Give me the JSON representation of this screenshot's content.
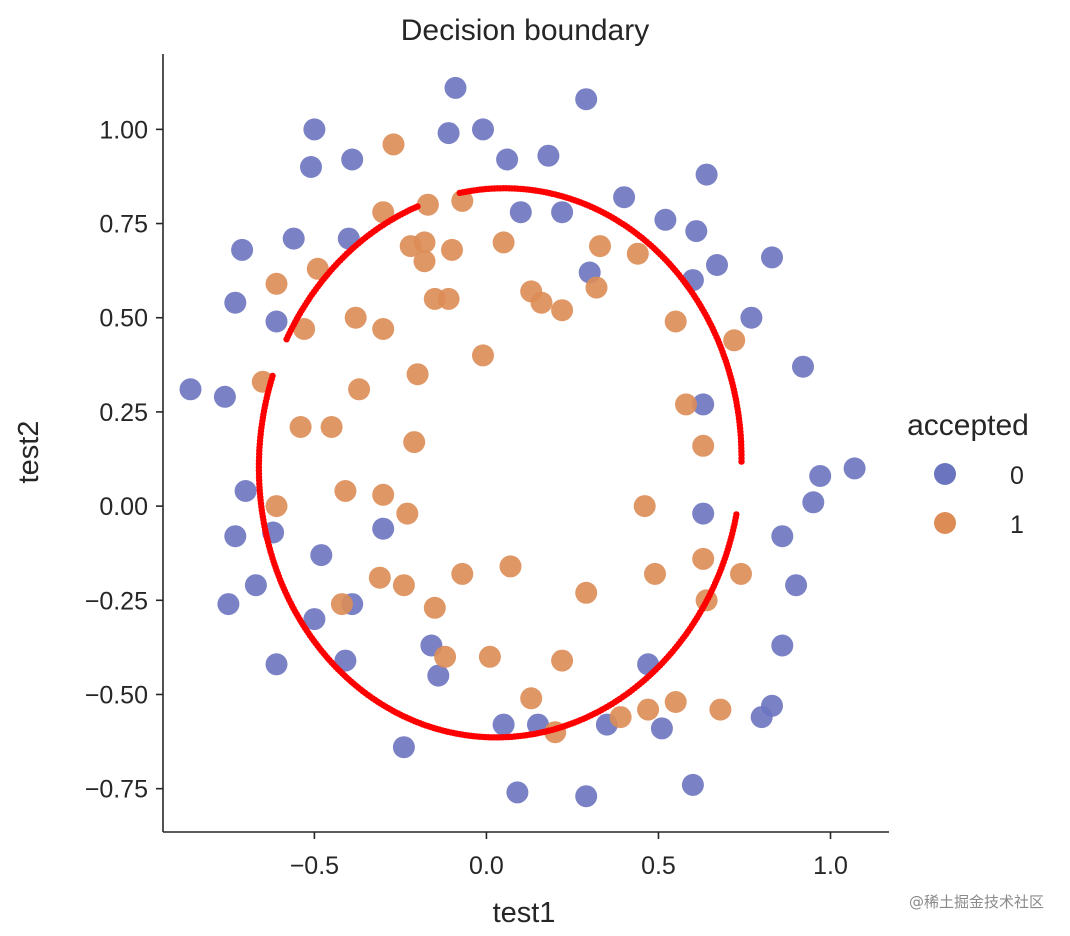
{
  "chart_data": {
    "type": "scatter",
    "title": "Decision boundary",
    "xlabel": "test1",
    "ylabel": "test2",
    "xlim": [
      -0.94,
      1.17
    ],
    "ylim": [
      -0.865,
      1.2
    ],
    "xticks": [
      -0.5,
      0.0,
      0.5,
      1.0
    ],
    "xtick_labels": [
      "−0.5",
      "0.0",
      "0.5",
      "1.0"
    ],
    "yticks": [
      1.0,
      0.75,
      0.5,
      0.25,
      0.0,
      -0.25,
      -0.5,
      -0.75
    ],
    "ytick_labels": [
      "1.00",
      "0.75",
      "0.50",
      "0.25",
      "0.00",
      "−0.25",
      "−0.50",
      "−0.75"
    ],
    "grid": false,
    "legend": {
      "title": "accepted",
      "placement": "right",
      "entries": [
        "0",
        "1"
      ]
    },
    "colors": {
      "class_0": "#6b74bf",
      "class_1": "#dd8c55",
      "boundary": "#ff0000",
      "axis": "#262626"
    },
    "series": [
      {
        "name": "0",
        "x": [
          -0.09,
          0.29,
          -0.5,
          -0.11,
          -0.01,
          -0.51,
          -0.39,
          0.06,
          0.18,
          0.64,
          0.4,
          0.1,
          0.22,
          0.52,
          0.61,
          -0.71,
          -0.56,
          -0.4,
          0.3,
          0.6,
          0.67,
          0.83,
          -0.73,
          -0.61,
          0.77,
          0.92,
          0.63,
          -0.86,
          -0.76,
          -0.7,
          -0.73,
          -0.62,
          -0.3,
          -0.48,
          0.97,
          0.95,
          0.86,
          0.9,
          -0.67,
          -0.75,
          -0.39,
          -0.5,
          -0.61,
          -0.41,
          -0.16,
          -0.14,
          0.47,
          0.05,
          0.15,
          0.35,
          0.51,
          0.83,
          0.8,
          0.86,
          -0.24,
          0.09,
          0.29,
          0.6,
          0.63,
          1.07
        ],
        "y": [
          1.11,
          1.08,
          1.0,
          0.99,
          1.0,
          0.9,
          0.92,
          0.92,
          0.93,
          0.88,
          0.82,
          0.78,
          0.78,
          0.76,
          0.73,
          0.68,
          0.71,
          0.71,
          0.62,
          0.6,
          0.64,
          0.66,
          0.54,
          0.49,
          0.5,
          0.37,
          0.27,
          0.31,
          0.29,
          0.04,
          -0.08,
          -0.07,
          -0.06,
          -0.13,
          0.08,
          0.01,
          -0.08,
          -0.21,
          -0.21,
          -0.26,
          -0.26,
          -0.3,
          -0.42,
          -0.41,
          -0.37,
          -0.45,
          -0.42,
          -0.58,
          -0.58,
          -0.58,
          -0.59,
          -0.53,
          -0.56,
          -0.37,
          -0.64,
          -0.76,
          -0.77,
          -0.74,
          -0.02,
          0.1
        ]
      },
      {
        "name": "1",
        "x": [
          -0.27,
          -0.07,
          -0.3,
          -0.17,
          0.05,
          -0.22,
          -0.18,
          -0.1,
          -0.18,
          0.33,
          0.44,
          -0.61,
          -0.49,
          -0.15,
          -0.11,
          0.13,
          0.16,
          0.22,
          0.32,
          -0.53,
          -0.38,
          -0.3,
          0.55,
          0.72,
          -0.01,
          -0.2,
          -0.37,
          -0.65,
          0.58,
          -0.54,
          -0.45,
          -0.21,
          0.63,
          -0.61,
          -0.41,
          -0.3,
          -0.23,
          0.46,
          0.07,
          -0.07,
          -0.31,
          -0.24,
          0.49,
          0.74,
          -0.15,
          0.29,
          -0.42,
          0.63,
          -0.12,
          0.01,
          0.22,
          0.13,
          0.55,
          0.47,
          0.68,
          0.39,
          0.2,
          0.64
        ],
        "y": [
          0.96,
          0.81,
          0.78,
          0.8,
          0.7,
          0.69,
          0.7,
          0.68,
          0.65,
          0.69,
          0.67,
          0.59,
          0.63,
          0.55,
          0.55,
          0.57,
          0.54,
          0.52,
          0.58,
          0.47,
          0.5,
          0.47,
          0.49,
          0.44,
          0.4,
          0.35,
          0.31,
          0.33,
          0.27,
          0.21,
          0.21,
          0.17,
          0.16,
          0.0,
          0.04,
          0.03,
          -0.02,
          0.0,
          -0.16,
          -0.18,
          -0.19,
          -0.21,
          -0.18,
          -0.18,
          -0.27,
          -0.23,
          -0.26,
          -0.14,
          -0.4,
          -0.4,
          -0.41,
          -0.51,
          -0.52,
          -0.54,
          -0.54,
          -0.56,
          -0.6,
          -0.25
        ]
      }
    ],
    "boundary": {
      "name": "decision boundary",
      "center": [
        0.04,
        0.115
      ],
      "semi_axes": [
        0.7,
        0.73
      ],
      "tilt_deg": -12,
      "gaps_x_at_top": [
        -0.2,
        -0.08
      ],
      "gap_y_right": [
        -0.02,
        0.11
      ],
      "gap_y_left": [
        0.35,
        0.44
      ]
    }
  },
  "watermark": "@稀土掘金技术社区"
}
